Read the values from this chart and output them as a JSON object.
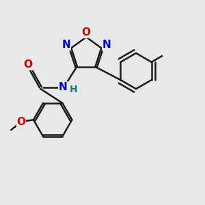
{
  "background_color": "#e8e8e8",
  "bond_color": "#1a1a1a",
  "bond_width": 1.8,
  "N_color": "#0000cc",
  "O_color": "#cc0000",
  "H_color": "#008080",
  "font_size": 11,
  "fig_size": [
    3.0,
    3.0
  ],
  "dpi": 100,
  "xlim": [
    0,
    10
  ],
  "ylim": [
    0,
    10
  ]
}
